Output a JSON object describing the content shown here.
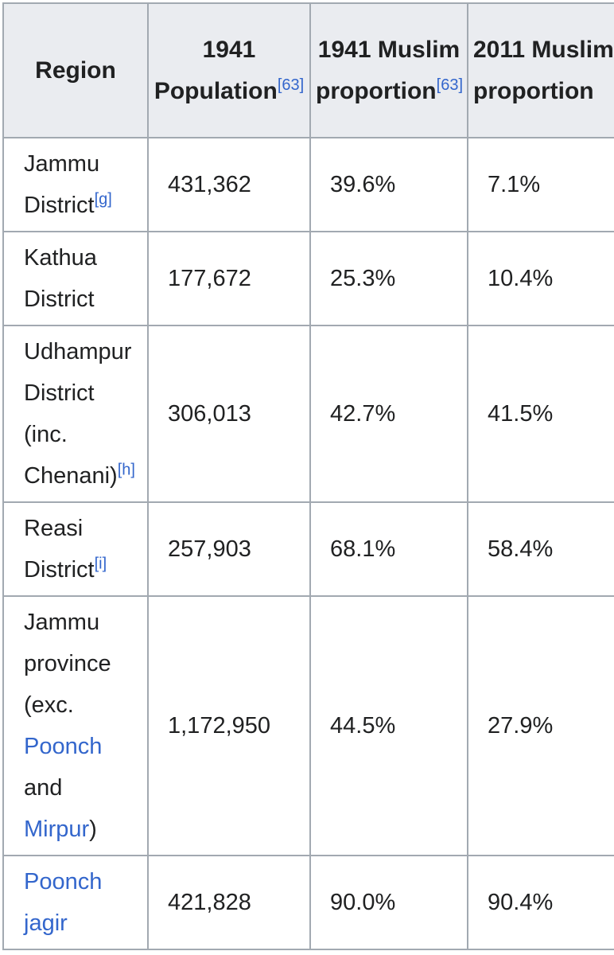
{
  "headers": {
    "region": "Region",
    "pop1941_line1": "1941",
    "pop1941_line2": "Population",
    "pop1941_ref": "[63]",
    "muslim1941_line1": "1941 Muslim",
    "muslim1941_line2": "proportion",
    "muslim1941_ref": "[63]",
    "muslim2011_line1": "2011 Muslim",
    "muslim2011_line2": "proportion"
  },
  "rows": [
    {
      "region_lines": [
        "Jammu",
        "District"
      ],
      "ref": "[g]",
      "pop": "431,362",
      "m1941": "39.6%",
      "m2011": "7.1%"
    },
    {
      "region_lines": [
        "Kathua",
        "District"
      ],
      "ref": "",
      "pop": "177,672",
      "m1941": "25.3%",
      "m2011": "10.4%"
    },
    {
      "region_lines": [
        "Udhampur",
        "District",
        "(inc.",
        "Chenani)"
      ],
      "ref": "[h]",
      "pop": "306,013",
      "m1941": "42.7%",
      "m2011": "41.5%"
    },
    {
      "region_lines": [
        "Reasi",
        "District"
      ],
      "ref": "[i]",
      "pop": "257,903",
      "m1941": "68.1%",
      "m2011": "58.4%"
    },
    {
      "region_lines": [
        "Jammu",
        "province",
        "(exc.",
        "Poonch",
        "and",
        "Mirpur",
        ")"
      ],
      "ref": "",
      "pop": "1,172,950",
      "m1941": "44.5%",
      "m2011": "27.9%"
    },
    {
      "region_lines": [
        "Poonch",
        "jagir"
      ],
      "ref": "",
      "pop": "421,828",
      "m1941": "90.0%",
      "m2011": "90.4%"
    }
  ]
}
